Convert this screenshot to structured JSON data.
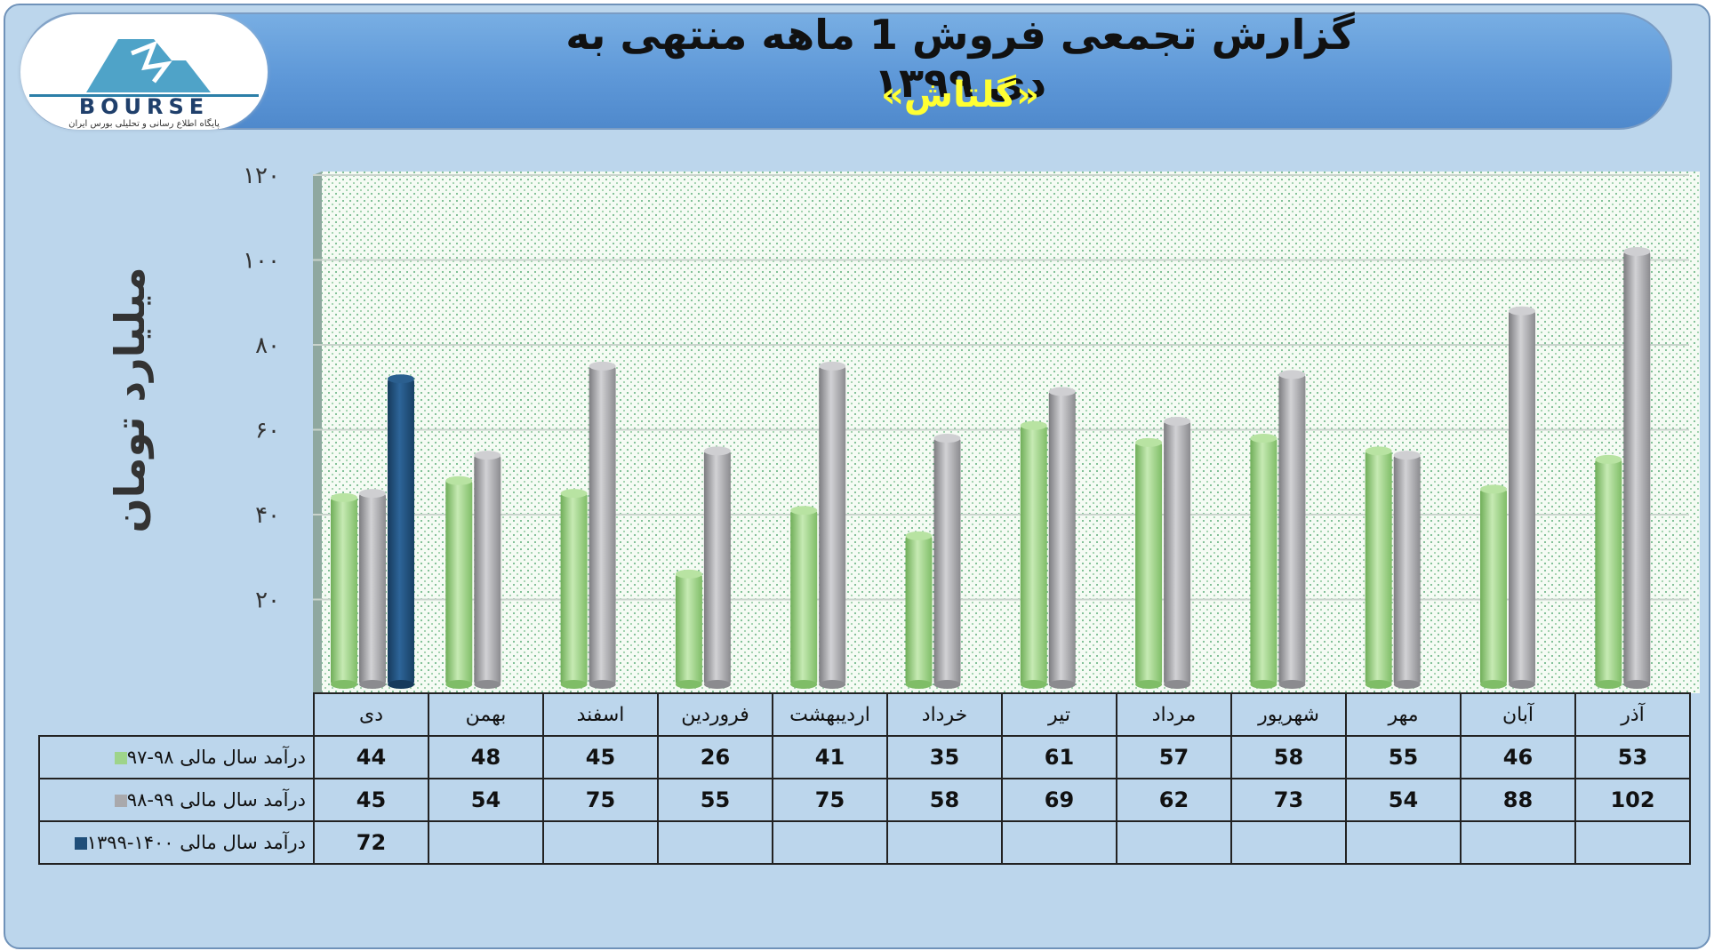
{
  "header": {
    "title": "گزارش تجمعی فروش 1 ماهه منتهی به دی ۱۳۹۹",
    "subtitle": "«گلتاش»",
    "logo_text": "BOURSE",
    "logo_tagline": "پایگاه اطلاع رسانی و تحلیلی بورس ایران"
  },
  "chart_data": {
    "type": "bar",
    "title": "گزارش تجمعی فروش 1 ماهه منتهی به دی ۱۳۹۹",
    "subtitle": "«گلتاش»",
    "ylabel": "میلیارد تومان",
    "xlabel": "",
    "ylim": [
      0,
      120
    ],
    "y_ticks": [
      20,
      40,
      60,
      80,
      100,
      120
    ],
    "y_tick_labels": [
      "۲۰",
      "۴۰",
      "۶۰",
      "۸۰",
      "۱۰۰",
      "۱۲۰"
    ],
    "categories": [
      "دی",
      "بهمن",
      "اسفند",
      "فروردین",
      "اردیبهشت",
      "خرداد",
      "تیر",
      "مرداد",
      "شهریور",
      "مهر",
      "آبان",
      "آذر"
    ],
    "series": [
      {
        "name": "درآمد سال مالی ۹۸-۹۷",
        "color": "#9ed48a",
        "values": [
          44,
          48,
          45,
          26,
          41,
          35,
          61,
          57,
          58,
          55,
          46,
          53
        ]
      },
      {
        "name": "درآمد سال مالی ۹۹-۹۸",
        "color": "#a9a9ac",
        "values": [
          45,
          54,
          75,
          55,
          75,
          58,
          69,
          62,
          73,
          54,
          88,
          102
        ]
      },
      {
        "name": "درآمد سال مالی ۱۴۰۰-۱۳۹۹",
        "color": "#1f4e79",
        "values": [
          72,
          null,
          null,
          null,
          null,
          null,
          null,
          null,
          null,
          null,
          null,
          null
        ]
      }
    ],
    "grid": true,
    "legend": "bottom-left table"
  }
}
